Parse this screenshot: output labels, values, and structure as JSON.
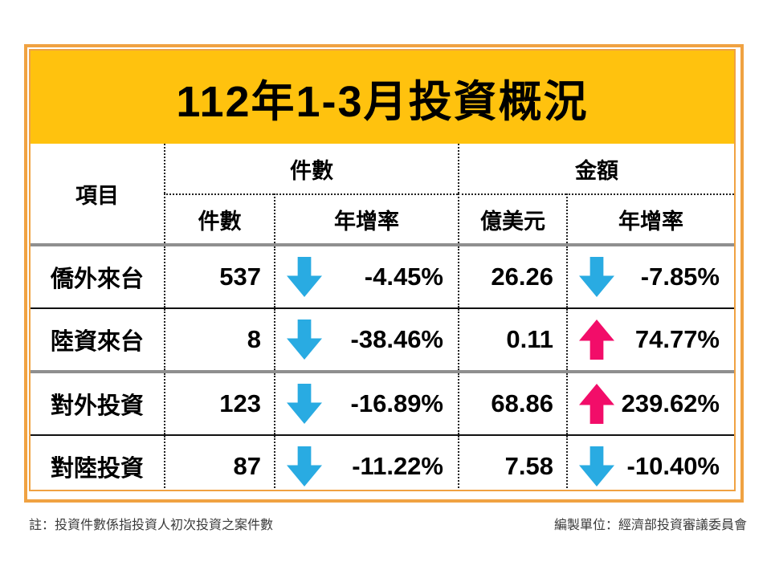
{
  "title": "112年1-3月投資概況",
  "table": {
    "item_header": "項目",
    "group_headers": {
      "cases": "件數",
      "amount": "金額"
    },
    "subheaders": {
      "cases_count": "件數",
      "cases_yoy": "年增率",
      "amount_usd": "億美元",
      "amount_yoy": "年增率"
    },
    "rows": [
      {
        "label": "僑外來台",
        "count": "537",
        "count_yoy": "-4.45%",
        "count_dir": "down",
        "amount": "26.26",
        "amount_yoy": "-7.85%",
        "amount_dir": "down"
      },
      {
        "label": "陸資來台",
        "count": "8",
        "count_yoy": "-38.46%",
        "count_dir": "down",
        "amount": "0.11",
        "amount_yoy": "74.77%",
        "amount_dir": "up"
      },
      {
        "label": "對外投資",
        "count": "123",
        "count_yoy": "-16.89%",
        "count_dir": "down",
        "amount": "68.86",
        "amount_yoy": "239.62%",
        "amount_dir": "up"
      },
      {
        "label": "對陸投資",
        "count": "87",
        "count_yoy": "-11.22%",
        "count_dir": "down",
        "amount": "7.58",
        "amount_yoy": "-10.40%",
        "amount_dir": "down"
      }
    ]
  },
  "footer": {
    "note": "註：投資件數係指投資人初次投資之案件數",
    "source": "編製單位：經濟部投資審議委員會"
  },
  "colors": {
    "title_band": "#FFC20E",
    "frame_border": "#F0A242",
    "arrow_up": "#F20D69",
    "arrow_down": "#29ABE2",
    "thick_divider": "#8F8F8F",
    "thin_divider": "#111111"
  },
  "chart_data": {
    "type": "table",
    "title": "112年1-3月投資概況",
    "column_groups": [
      "項目",
      "件數",
      "金額"
    ],
    "columns": [
      "項目",
      "件數",
      "件數 年增率",
      "金額 億美元",
      "金額 年增率"
    ],
    "rows": [
      [
        "僑外來台",
        537,
        "-4.45%",
        26.26,
        "-7.85%"
      ],
      [
        "陸資來台",
        8,
        "-38.46%",
        0.11,
        "74.77%"
      ],
      [
        "對外投資",
        123,
        "-16.89%",
        68.86,
        "239.62%"
      ],
      [
        "對陸投資",
        87,
        "-11.22%",
        7.58,
        "-10.40%"
      ]
    ],
    "yoy_direction": {
      "件數": [
        "down",
        "down",
        "down",
        "down"
      ],
      "金額": [
        "down",
        "up",
        "up",
        "down"
      ]
    },
    "notes": [
      "註：投資件數係指投資人初次投資之案件數",
      "編製單位：經濟部投資審議委員會"
    ]
  }
}
